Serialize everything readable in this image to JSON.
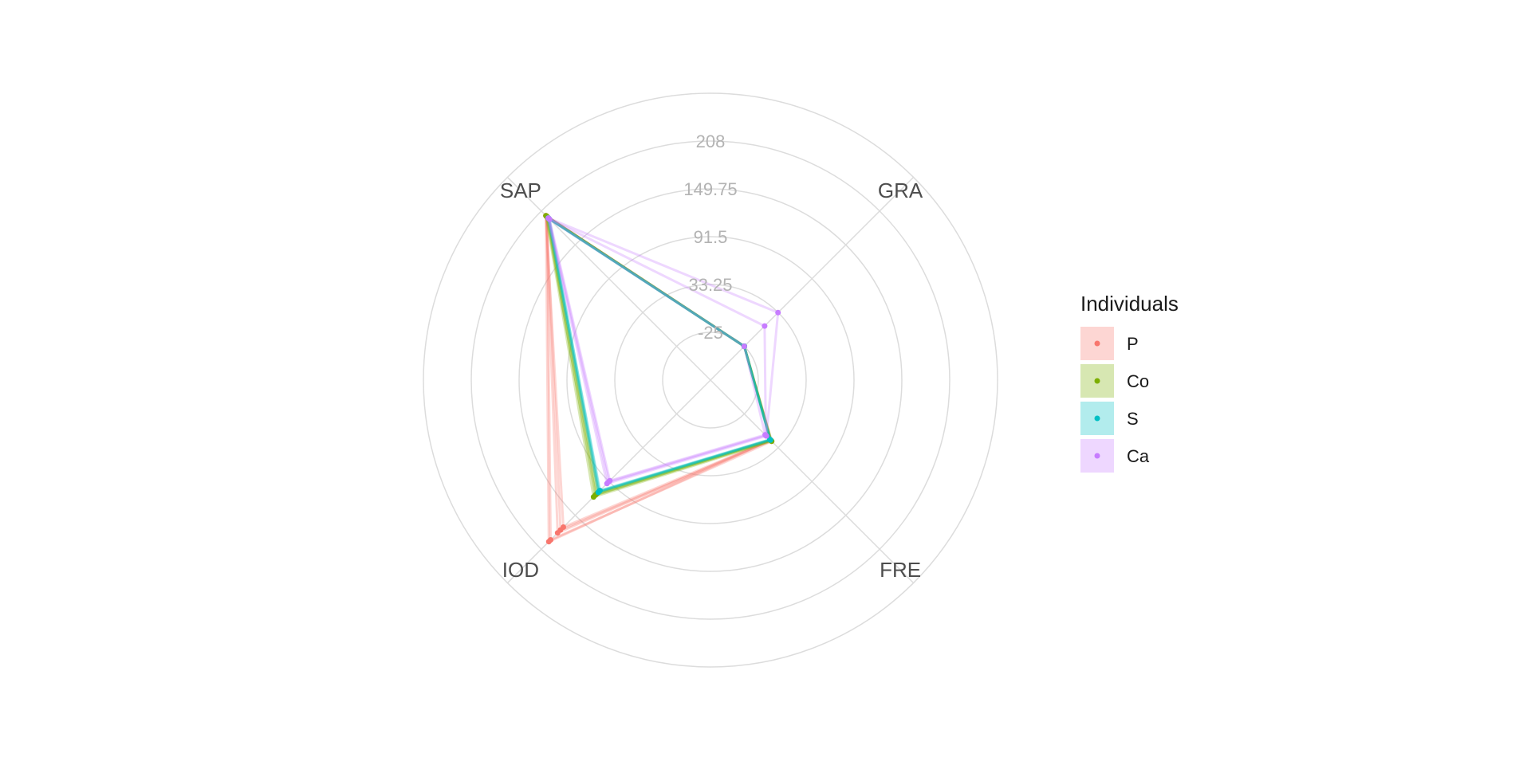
{
  "chart_data": {
    "type": "radar",
    "axes": [
      "SAP",
      "GRA",
      "FRE",
      "IOD"
    ],
    "radial_ticks": [
      "-25",
      "33.25",
      "91.5",
      "149.75",
      "208"
    ],
    "rlim": [
      -25,
      208
    ],
    "grid": true,
    "legend": {
      "title": "Individuals",
      "position": "right"
    },
    "series": [
      {
        "name": "P",
        "color": "#F8766D",
        "values": [
          [
            200,
            -25,
            20,
            195
          ],
          [
            198,
            -25,
            22,
            192
          ],
          [
            200,
            -25,
            20,
            180
          ],
          [
            199,
            -25,
            21,
            175
          ],
          [
            200,
            -25,
            20,
            170
          ]
        ]
      },
      {
        "name": "Co",
        "color": "#7CAE00",
        "values": [
          [
            200,
            -25,
            22,
            118
          ],
          [
            199,
            -25,
            21,
            114
          ],
          [
            197,
            -25,
            20,
            112
          ],
          [
            198,
            -25,
            21,
            115
          ],
          [
            196,
            -25,
            20,
            110
          ]
        ]
      },
      {
        "name": "S",
        "color": "#00BFC4",
        "values": [
          [
            196,
            -25,
            20,
            110
          ],
          [
            195,
            -25,
            19,
            107
          ],
          [
            194,
            -25,
            20,
            108
          ],
          [
            196,
            -25,
            19,
            109
          ]
        ]
      },
      {
        "name": "Ca",
        "color": "#C77CFF",
        "values": [
          [
            196,
            33,
            13,
            95
          ],
          [
            195,
            10,
            12,
            92
          ],
          [
            194,
            -25,
            11,
            90
          ]
        ]
      }
    ]
  }
}
